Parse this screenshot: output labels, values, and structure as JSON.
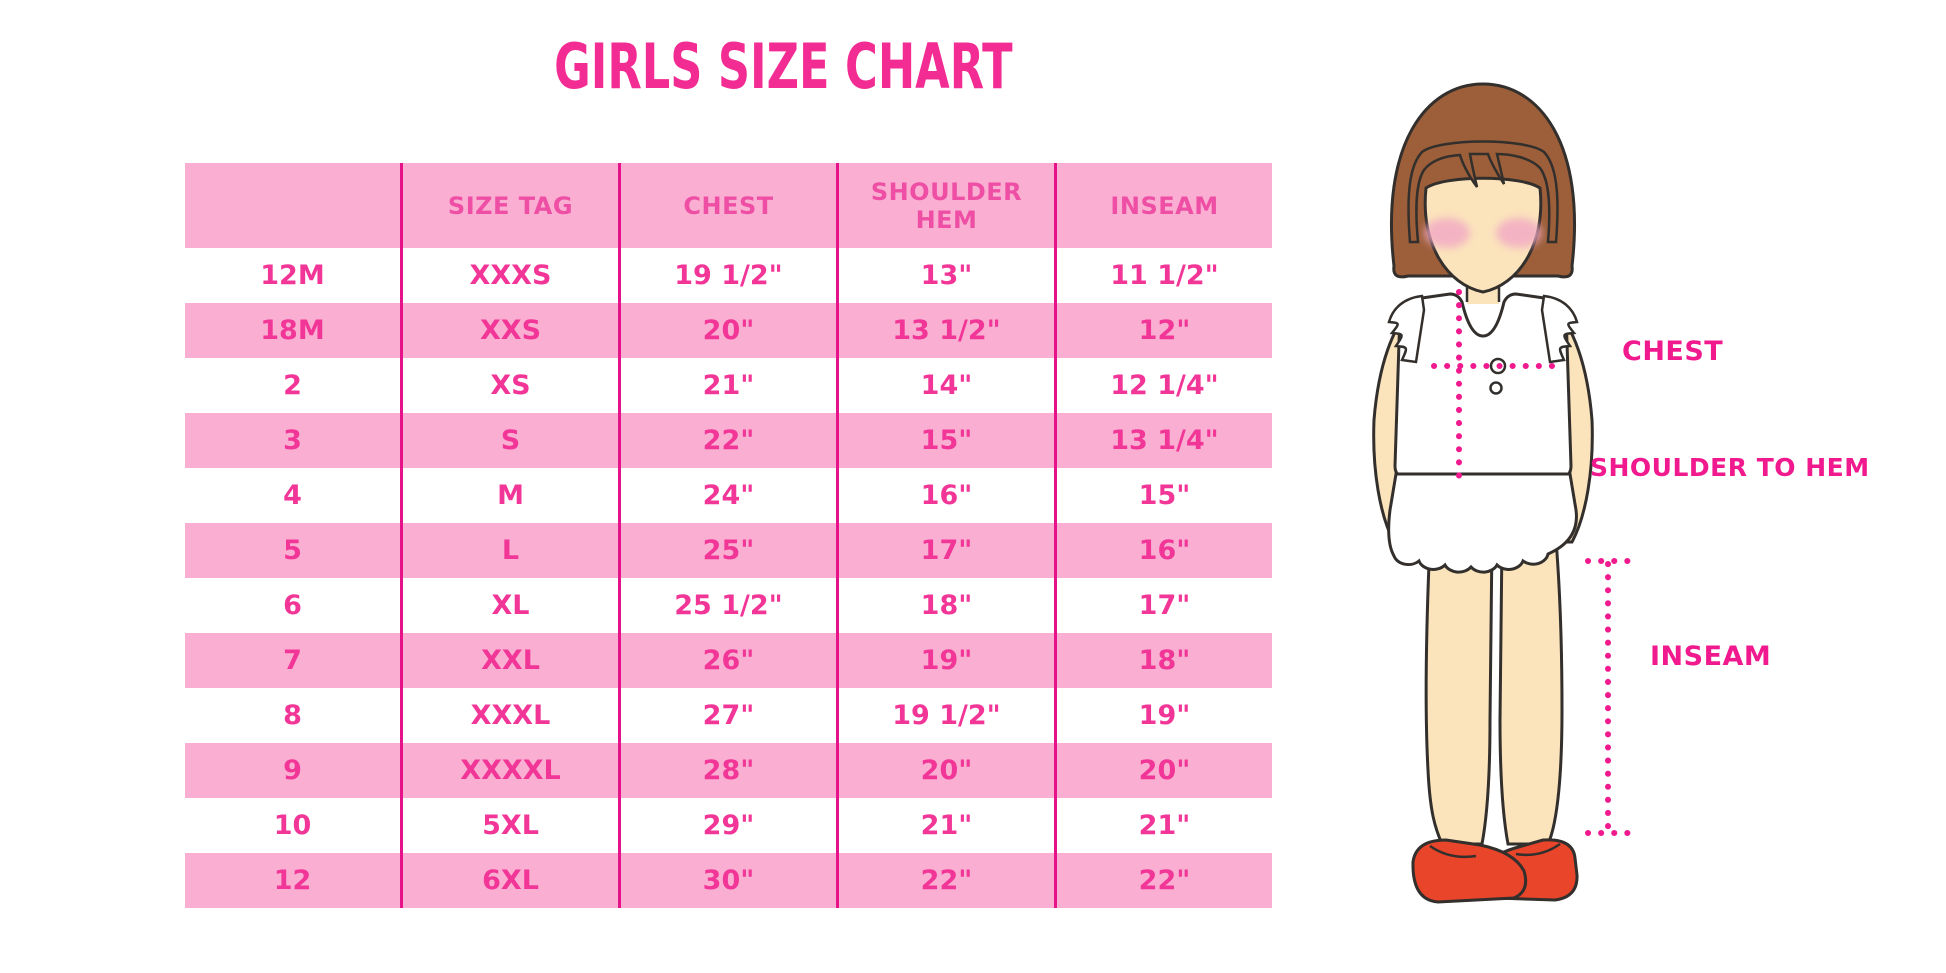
{
  "title": "GIRLS SIZE CHART",
  "colors": {
    "title_pink": "#F22C93",
    "row_pink": "#FAAFD2",
    "divider_pink": "#E51289",
    "cell_text_pink": "#F23697",
    "header_text_pink": "#EE4FA5",
    "label_pink": "#F01A8E",
    "skin": "#FBE4BC",
    "hair_brown": "#9C5F3A",
    "blush_pink": "#F2A8C4",
    "shoe_red": "#E8452B",
    "outline_dark": "#332F2C"
  },
  "chart_data": {
    "type": "table",
    "title": "GIRLS SIZE CHART",
    "columns": [
      "",
      "SIZE TAG",
      "CHEST",
      "SHOULDER HEM",
      "INSEAM"
    ],
    "rows": [
      [
        "12M",
        "XXXS",
        "19 1/2\"",
        "13\"",
        "11 1/2\""
      ],
      [
        "18M",
        "XXS",
        "20\"",
        "13 1/2\"",
        "12\""
      ],
      [
        "2",
        "XS",
        "21\"",
        "14\"",
        "12 1/4\""
      ],
      [
        "3",
        "S",
        "22\"",
        "15\"",
        "13 1/4\""
      ],
      [
        "4",
        "M",
        "24\"",
        "16\"",
        "15\""
      ],
      [
        "5",
        "L",
        "25\"",
        "17\"",
        "16\""
      ],
      [
        "6",
        "XL",
        "25 1/2\"",
        "18\"",
        "17\""
      ],
      [
        "7",
        "XXL",
        "26\"",
        "19\"",
        "18\""
      ],
      [
        "8",
        "XXXL",
        "27\"",
        "19 1/2\"",
        "19\""
      ],
      [
        "9",
        "XXXXL",
        "28\"",
        "20\"",
        "20\""
      ],
      [
        "10",
        "5XL",
        "29\"",
        "21\"",
        "21\""
      ],
      [
        "12",
        "6XL",
        "30\"",
        "22\"",
        "22\""
      ]
    ],
    "row_striping": "white / pink alternating, header pink",
    "legend_position": "none",
    "grid": "vertical magenta dividers only"
  },
  "diagram": {
    "labels": {
      "chest": "CHEST",
      "shoulder_to_hem": "SHOULDER TO HEM",
      "inseam": "INSEAM"
    }
  }
}
